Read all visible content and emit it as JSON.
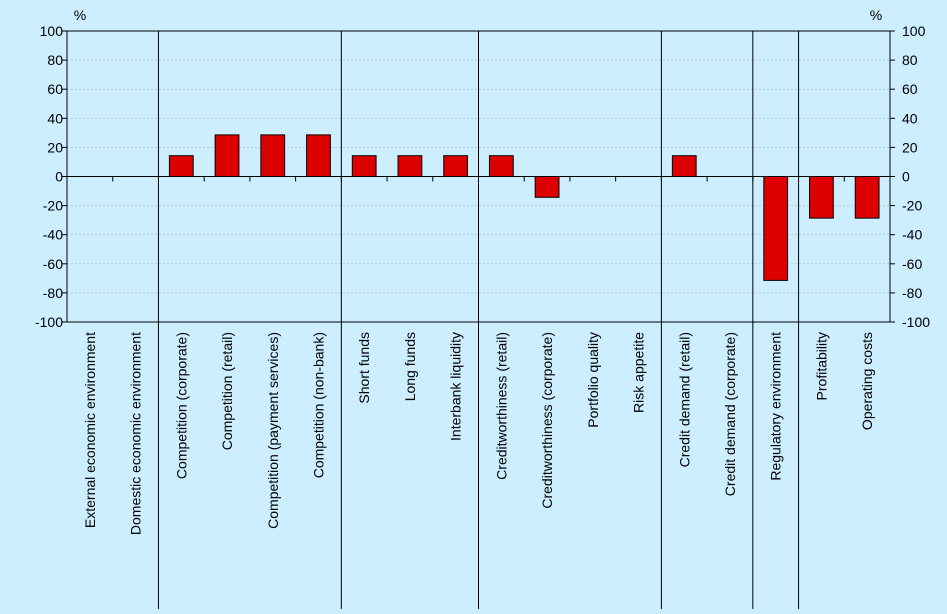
{
  "chart_data": {
    "type": "bar",
    "ylabel_left": "%",
    "ylabel_right": "%",
    "ylim": [
      -100,
      100
    ],
    "yticks": [
      100,
      80,
      60,
      40,
      20,
      0,
      -20,
      -40,
      -60,
      -80,
      -100
    ],
    "grid": true,
    "categories": [
      "External economic environment",
      "Domestic economic environment",
      "Competition (corporate)",
      "Competition (retail)",
      "Competition (payment services)",
      "Competition (non-bank)",
      "Short funds",
      "Long funds",
      "Interbank liquidity",
      "Creditworthiness (retail)",
      "Creditworthiness (corporate)",
      "Portfolio quality",
      "Risk appetite",
      "Credit demand (retail)",
      "Credit demand (corporate)",
      "Regulatory environment",
      "Profitability",
      "Operating costs"
    ],
    "values": [
      0,
      0,
      14.3,
      28.6,
      28.6,
      28.6,
      14.3,
      14.3,
      14.3,
      14.3,
      -14.3,
      0,
      0,
      14.3,
      0,
      -71.4,
      -28.6,
      -28.6
    ],
    "group_breaks_after": [
      1,
      5,
      8,
      12,
      14,
      15
    ],
    "bar_color": "#dd0000"
  }
}
